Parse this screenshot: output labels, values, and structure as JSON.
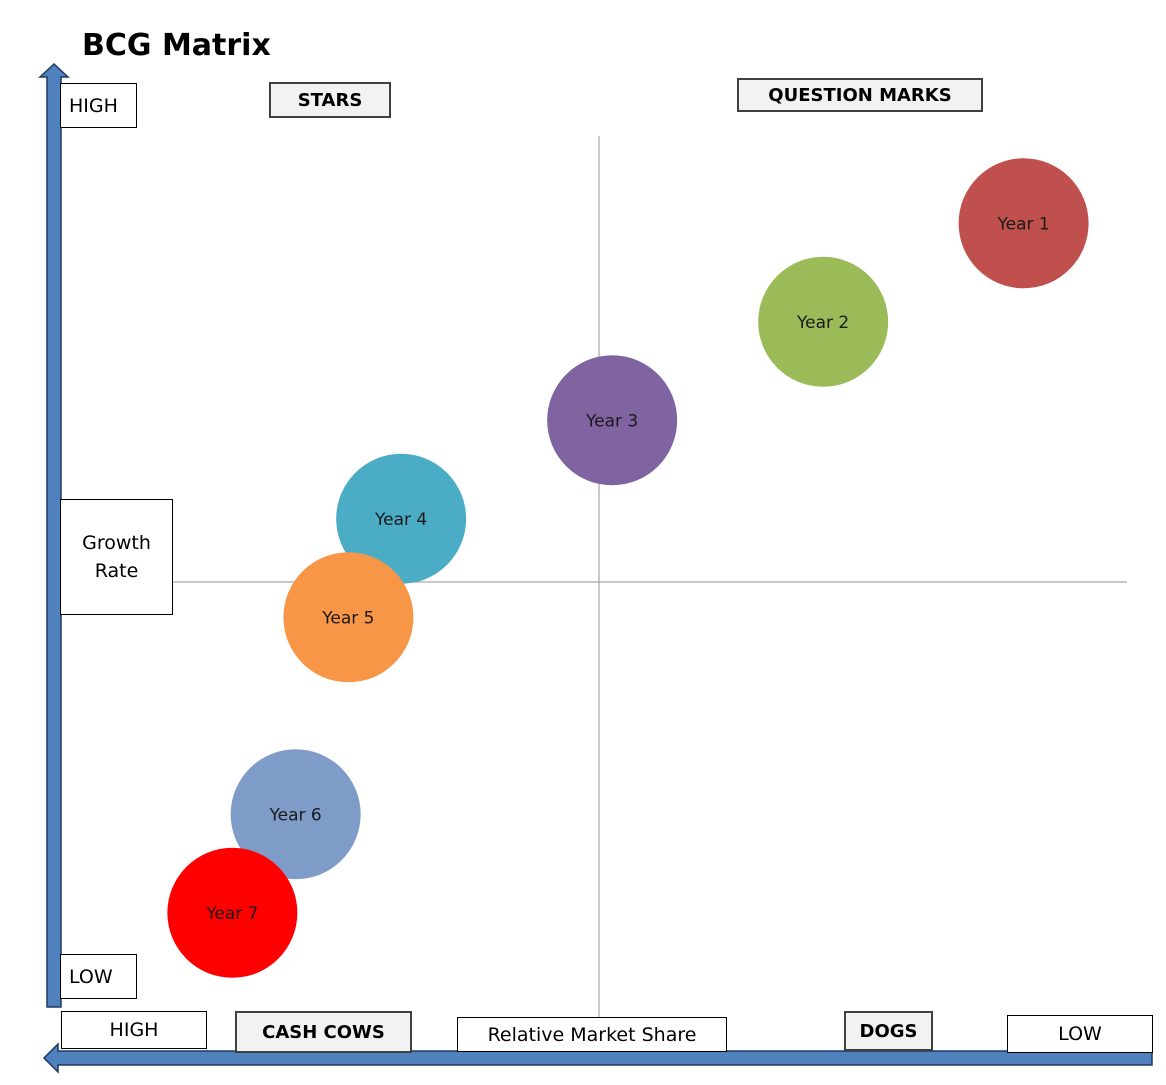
{
  "title": "BCG Matrix",
  "y_axis": {
    "high_label": "HIGH",
    "low_label": "LOW",
    "name_line1": "Growth",
    "name_line2": "Rate"
  },
  "x_axis": {
    "high_label": "HIGH",
    "low_label": "LOW",
    "name": "Relative Market Share"
  },
  "quadrants": {
    "stars": "STARS",
    "question_marks": "QUESTION MARKS",
    "cash_cows": "CASH COWS",
    "dogs": "DOGS"
  },
  "colors": {
    "axis_arrow": "#4f81bd",
    "axis_arrow_border": "#1f3864",
    "quadrant_lines": "#a6a6a6"
  },
  "chart_data": {
    "type": "scatter",
    "title": "BCG Matrix",
    "xlabel": "Relative Market Share",
    "ylabel": "Growth Rate",
    "grid": false,
    "legend": "none",
    "x_direction": "HIGH to LOW",
    "y_direction": "LOW to HIGH",
    "series": [
      {
        "name": "Year 1",
        "label": "Year 1",
        "x": 0.92,
        "y": 0.82,
        "color": "#c0504d",
        "text_color": "#1a1a1a"
      },
      {
        "name": "Year 2",
        "label": "Year 2",
        "x": 0.73,
        "y": 0.72,
        "color": "#9bbb59",
        "text_color": "#1a1a1a"
      },
      {
        "name": "Year 3",
        "label": "Year 3",
        "x": 0.53,
        "y": 0.62,
        "color": "#8064a2",
        "text_color": "#1a1a1a"
      },
      {
        "name": "Year 4",
        "label": "Year 4",
        "x": 0.33,
        "y": 0.52,
        "color": "#4bacc6",
        "text_color": "#1a1a1a"
      },
      {
        "name": "Year 5",
        "label": "Year 5",
        "x": 0.28,
        "y": 0.42,
        "color": "#f79646",
        "text_color": "#1a1a1a"
      },
      {
        "name": "Year 6",
        "label": "Year 6",
        "x": 0.23,
        "y": 0.22,
        "color": "#7f9cc9",
        "text_color": "#1a1a1a"
      },
      {
        "name": "Year 7",
        "label": "Year 7",
        "x": 0.17,
        "y": 0.12,
        "color": "#ff0000",
        "text_color": "#1a1a1a"
      }
    ]
  }
}
